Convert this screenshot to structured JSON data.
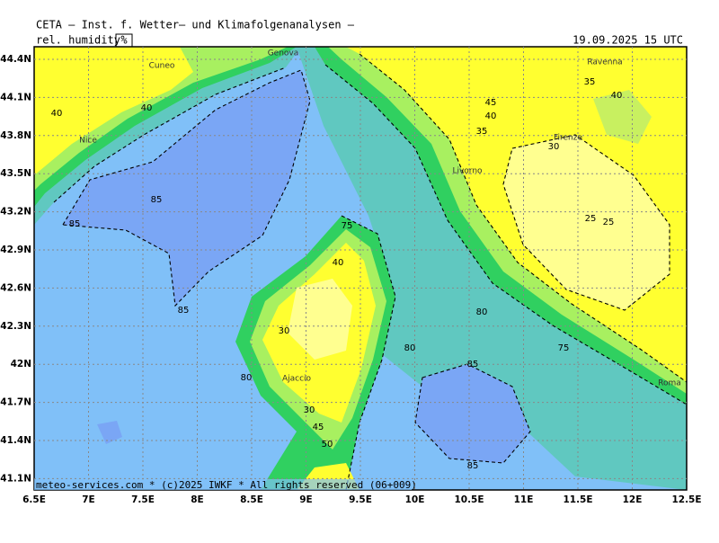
{
  "header": {
    "title": "CETA — Inst. f. Wetter— und Klimafolgenanalysen —",
    "parameter": "rel. humidity",
    "unit": "%",
    "datetime": "19.09.2025 15 UTC"
  },
  "footer": "meteo-services.com * (c)2025 IWKF * All rights reserved (06+009)",
  "lat_labels": [
    "44.4N",
    "44.1N",
    "43.8N",
    "43.5N",
    "43.2N",
    "42.9N",
    "42.6N",
    "42.3N",
    "42N",
    "41.7N",
    "41.4N",
    "41.1N"
  ],
  "lon_labels": [
    "6.5E",
    "7E",
    "7.5E",
    "8E",
    "8.5E",
    "9E",
    "9.5E",
    "10E",
    "10.5E",
    "11E",
    "11.5E",
    "12E",
    "12.5E"
  ],
  "cities": [
    "Cuneo",
    "Genova",
    "Ravenna",
    "Nice",
    "Firenze",
    "Livorno",
    "Ajaccio",
    "Roma"
  ],
  "contour_labels": [
    40,
    40,
    85,
    85,
    85,
    35,
    40,
    45,
    40,
    35,
    30,
    25,
    25,
    80,
    80,
    75,
    85,
    85,
    80,
    30,
    30,
    45,
    50,
    75,
    40
  ]
}
